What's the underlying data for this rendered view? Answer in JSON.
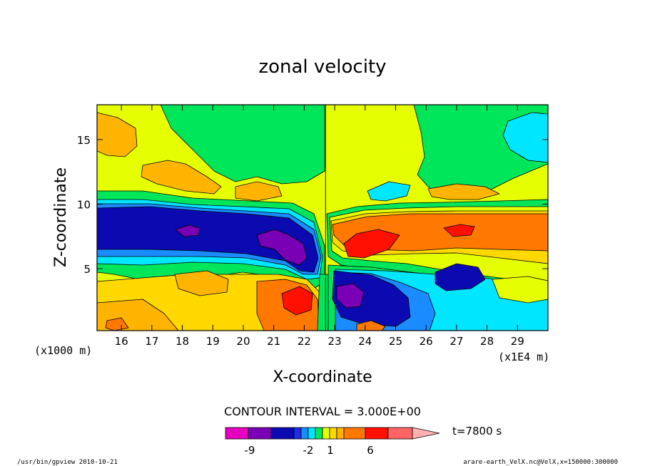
{
  "chart_data": {
    "type": "heatmap",
    "title": "zonal velocity",
    "xlabel": "X-coordinate",
    "ylabel": "Z-coordinate",
    "x_unit": "(x1E4 m)",
    "y_unit": "(x1000 m)",
    "xlim": [
      15.2,
      30.0
    ],
    "ylim": [
      0.2,
      17.7
    ],
    "x_ticks": [
      "16",
      "17",
      "18",
      "19",
      "20",
      "21",
      "22",
      "23",
      "24",
      "25",
      "26",
      "27",
      "28",
      "29"
    ],
    "y_ticks": [
      "5",
      "10",
      "15"
    ],
    "contour_interval": "CONTOUR INTERVAL = 3.000E+00",
    "colorbar_labels": [
      "-9",
      "-2",
      "1",
      "6"
    ],
    "colorbar_colors": [
      "#e600bf",
      "#7a00b5",
      "#0a0ab0",
      "#1e2ee6",
      "#1a8cff",
      "#00e6ff",
      "#00e65a",
      "#e6ff00",
      "#ffd800",
      "#ffb400",
      "#ff7800",
      "#ff1000",
      "#ff6464",
      "#ffb0b0"
    ],
    "time_label": "t=7800 s",
    "footer_left": "/usr/bin/gpview  2010-10-21",
    "footer_right": "arare-earth_VelX.nc@VelX,x=150000:300000",
    "regions": [
      {
        "label": "background",
        "value": 1.0,
        "color": "#e6ff00"
      },
      {
        "label": "upper-left orange patch",
        "value": 4.0,
        "color": "#ffb400",
        "x": 15.6,
        "z": 16.0
      },
      {
        "label": "upper-right cyan patch",
        "value": -2.0,
        "color": "#00e6ff",
        "x": 29.2,
        "z": 15.0
      },
      {
        "label": "left blue jet",
        "value": -8.0,
        "color": "#0a0ab0",
        "x": 18.5,
        "z": 7.8
      },
      {
        "label": "left purple core",
        "value": -11.0,
        "color": "#7a00b5",
        "x": 21.2,
        "z": 6.8
      },
      {
        "label": "right orange jet",
        "value": 7.0,
        "color": "#ff7800",
        "x": 27.0,
        "z": 7.6
      },
      {
        "label": "right red core",
        "value": 10.0,
        "color": "#ff1000",
        "x": 23.5,
        "z": 6.0
      },
      {
        "label": "lower-left red cell",
        "value": 10.0,
        "color": "#ff1000",
        "x": 21.5,
        "z": 2.5
      },
      {
        "label": "lower-center blue cell",
        "value": -8.0,
        "color": "#0a0ab0",
        "x": 23.8,
        "z": 2.5
      },
      {
        "label": "lower-center purple core",
        "value": -11.0,
        "color": "#7a00b5",
        "x": 23.4,
        "z": 2.6
      },
      {
        "label": "lower-right cyan region",
        "value": -2.0,
        "color": "#00e6ff",
        "x": 27.0,
        "z": 2.5
      },
      {
        "label": "lower-right blue blob",
        "value": -8.0,
        "color": "#0a0ab0",
        "x": 26.8,
        "z": 4.0
      }
    ]
  }
}
